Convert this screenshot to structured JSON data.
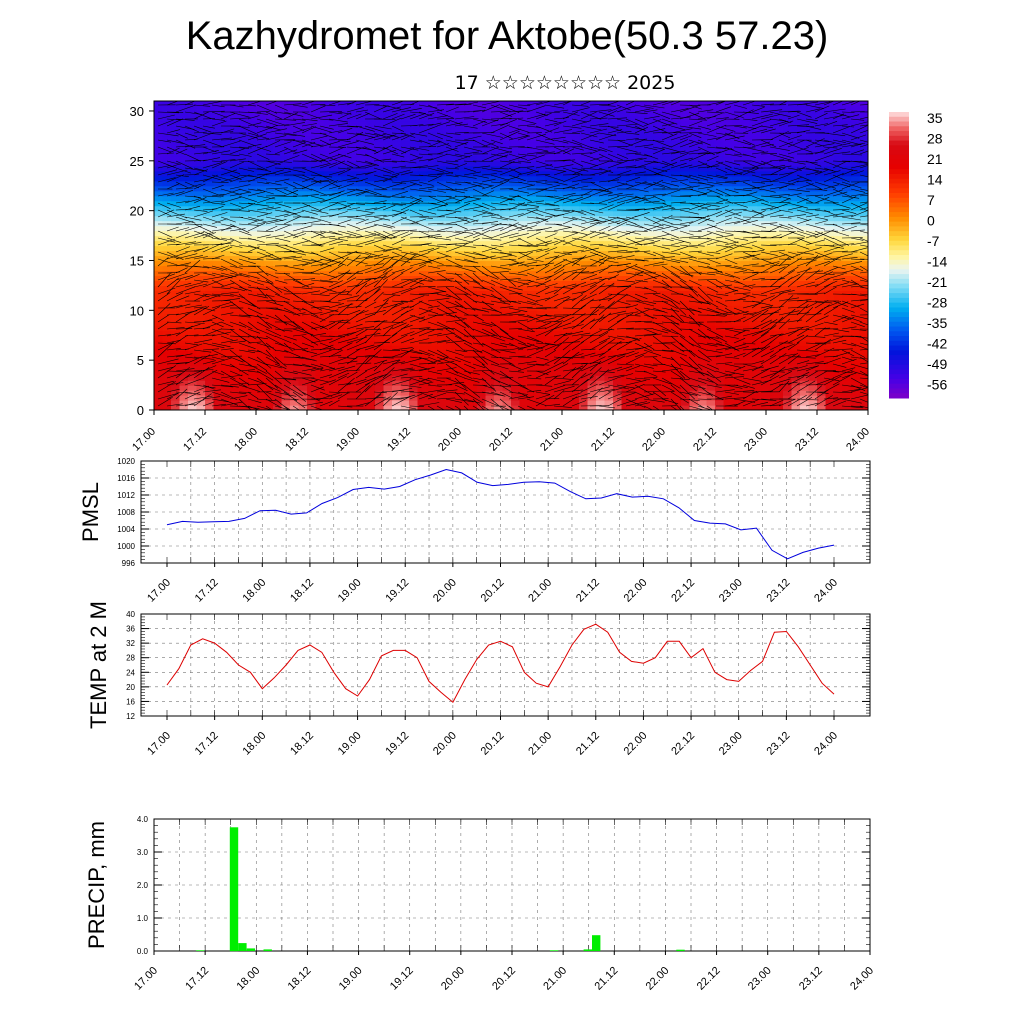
{
  "title": "Kazhydromet for Aktobe(50.3 57.23)",
  "subtitle": "17 ☆☆☆☆☆☆☆☆ 2025",
  "colors": {
    "pmsl_line": "#0000dd",
    "temp_line": "#dd0000",
    "precip_bar": "#00ee00"
  },
  "chart_data": [
    {
      "type": "heatmap",
      "name": "vertical temperature cross-section with wind barbs",
      "x_ticks": [
        "17.00",
        "17.12",
        "18.00",
        "18.12",
        "19.00",
        "19.12",
        "20.00",
        "20.12",
        "21.00",
        "21.12",
        "22.00",
        "22.12",
        "23.00",
        "23.12",
        "24.00"
      ],
      "y_ticks": [
        0,
        5,
        10,
        15,
        20,
        25,
        30
      ],
      "ylim": [
        0,
        31
      ],
      "colorbar_labels": [
        "35",
        "28",
        "21",
        "14",
        "7",
        "0",
        "-7",
        "-14",
        "-21",
        "-28",
        "-35",
        "-42",
        "-49",
        "-56"
      ],
      "colorbar_range": [
        -63,
        42
      ]
    },
    {
      "type": "line",
      "ylabel": "PMSL",
      "x_ticks": [
        "17.00",
        "17.12",
        "18.00",
        "18.12",
        "19.00",
        "19.12",
        "20.00",
        "20.12",
        "21.00",
        "21.12",
        "22.00",
        "22.12",
        "23.00",
        "23.12",
        "24.00"
      ],
      "y_ticks": [
        "996",
        "1000",
        "1004",
        "1008",
        "1012",
        "1016",
        "1020"
      ],
      "ylim": [
        996,
        1020
      ],
      "grid": true,
      "values": [
        1005,
        1005.8,
        1005.6,
        1005.7,
        1005.8,
        1006.5,
        1008.3,
        1008.4,
        1007.5,
        1007.8,
        1010,
        1011.4,
        1013.3,
        1013.8,
        1013.4,
        1014,
        1015.6,
        1016.7,
        1018,
        1017.2,
        1015,
        1014.2,
        1014.5,
        1015,
        1015.1,
        1014.8,
        1012.8,
        1011.1,
        1011.3,
        1012.3,
        1011.5,
        1011.7,
        1011.1,
        1009,
        1006,
        1005.4,
        1005.2,
        1003.8,
        1004.2,
        999,
        997,
        998.5,
        999.5,
        1000.2
      ]
    },
    {
      "type": "line",
      "ylabel": "TEMP at 2 M",
      "x_ticks": [
        "17.00",
        "17.12",
        "18.00",
        "18.12",
        "19.00",
        "19.12",
        "20.00",
        "20.12",
        "21.00",
        "21.12",
        "22.00",
        "22.12",
        "23.00",
        "23.12",
        "24.00"
      ],
      "y_ticks": [
        "12",
        "16",
        "20",
        "24",
        "28",
        "32",
        "36",
        "40"
      ],
      "ylim": [
        12,
        40
      ],
      "grid": true,
      "values": [
        20.5,
        25,
        31.5,
        33.2,
        32,
        29.5,
        26,
        24,
        19.5,
        22.5,
        26,
        30,
        31.5,
        29.5,
        24,
        19.5,
        17.5,
        22,
        28.5,
        30,
        30,
        28,
        21.5,
        18.5,
        15.8,
        22,
        27.5,
        31.5,
        32.5,
        31,
        24,
        21,
        20,
        25.5,
        31.5,
        35.8,
        37.2,
        35,
        29.5,
        27,
        26.5,
        28,
        32.5,
        32.5,
        28,
        30.5,
        24,
        22,
        21.5,
        24.5,
        27,
        35,
        35.2,
        31,
        26,
        21,
        18
      ]
    },
    {
      "type": "bar",
      "ylabel": "PRECIP, mm",
      "x_ticks": [
        "17.00",
        "17.12",
        "18.00",
        "18.12",
        "19.00",
        "19.12",
        "20.00",
        "20.12",
        "21.00",
        "21.12",
        "22.00",
        "22.12",
        "23.00",
        "23.12",
        "24.00"
      ],
      "y_ticks": [
        "0.0",
        "1.0",
        "2.0",
        "3.0",
        "4.0"
      ],
      "ylim": [
        0,
        4
      ],
      "grid": true,
      "values": [
        0,
        0,
        0,
        0,
        0,
        0.02,
        0,
        0,
        0,
        3.75,
        0.24,
        0.08,
        0,
        0.05,
        0,
        0,
        0,
        0,
        0,
        0,
        0,
        0,
        0,
        0,
        0,
        0,
        0,
        0,
        0,
        0,
        0,
        0,
        0,
        0,
        0,
        0,
        0,
        0,
        0,
        0,
        0,
        0,
        0,
        0,
        0,
        0,
        0,
        0.02,
        0,
        0,
        0,
        0.05,
        0.48,
        0,
        0,
        0,
        0,
        0,
        0,
        0,
        0,
        0,
        0.04,
        0,
        0,
        0,
        0,
        0,
        0,
        0,
        0,
        0,
        0,
        0,
        0,
        0,
        0,
        0,
        0,
        0,
        0,
        0,
        0,
        0,
        0
      ]
    }
  ]
}
